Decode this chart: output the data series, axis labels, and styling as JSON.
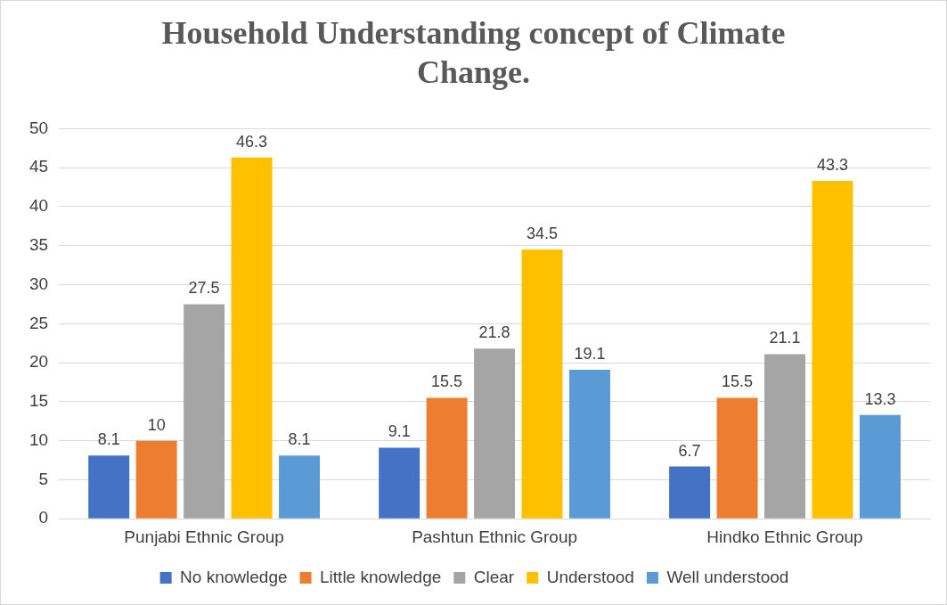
{
  "chart_data": {
    "type": "bar",
    "title": "Household Understanding concept of Climate Change.",
    "categories": [
      "Punjabi Ethnic Group",
      "Pashtun Ethnic Group",
      "Hindko Ethnic Group"
    ],
    "series": [
      {
        "name": "No knowledge",
        "color": "#4472c4",
        "values": [
          8.1,
          9.1,
          6.7
        ]
      },
      {
        "name": "Little knowledge",
        "color": "#ed7d31",
        "values": [
          10,
          15.5,
          15.5
        ]
      },
      {
        "name": "Clear",
        "color": "#a5a5a5",
        "values": [
          27.5,
          21.8,
          21.1
        ]
      },
      {
        "name": "Understood",
        "color": "#ffc000",
        "values": [
          46.3,
          34.5,
          43.3
        ]
      },
      {
        "name": "Well understood",
        "color": "#5b9bd5",
        "values": [
          8.1,
          19.1,
          13.3
        ]
      }
    ],
    "ylim": [
      0,
      50
    ],
    "yticks": [
      0,
      5,
      10,
      15,
      20,
      25,
      30,
      35,
      40,
      45,
      50
    ],
    "grid": "y",
    "legend": "bottom",
    "data_labels": true
  }
}
